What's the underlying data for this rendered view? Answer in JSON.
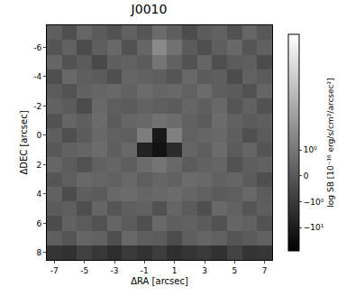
{
  "chart_data": {
    "type": "heatmap",
    "title": "J0010",
    "x_label": "ΔRA [arcsec]",
    "y_label": "ΔDEC [arcsec]",
    "x": [
      -7,
      -6,
      -5,
      -4,
      -3,
      -2,
      -1,
      0,
      1,
      2,
      3,
      4,
      5,
      6,
      7
    ],
    "y": [
      -7,
      -6,
      -5,
      -4,
      -3,
      -2,
      -1,
      0,
      1,
      2,
      3,
      4,
      5,
      6,
      7,
      8
    ],
    "xlim": [
      -7.5,
      7.5
    ],
    "ylim": [
      8.5,
      -7.5
    ],
    "xticks": [
      -7,
      -5,
      -3,
      -1,
      1,
      3,
      5,
      7
    ],
    "yticks": [
      -6,
      -4,
      -2,
      0,
      2,
      4,
      6,
      8
    ],
    "cells": [
      [
        0.2,
        -0.3,
        0.4,
        0.1,
        -0.2,
        0.3,
        -0.1,
        0.6,
        0.2,
        -0.4,
        0.1,
        0.3,
        -0.2,
        0.4,
        0.0
      ],
      [
        -0.1,
        0.3,
        -0.4,
        0.2,
        0.5,
        -0.2,
        0.4,
        4.0,
        0.8,
        0.1,
        -0.3,
        0.2,
        0.5,
        -0.1,
        0.3
      ],
      [
        0.4,
        -0.2,
        0.1,
        -0.5,
        0.2,
        0.3,
        0.1,
        0.9,
        0.3,
        -0.2,
        0.4,
        -0.3,
        0.1,
        0.2,
        -0.4
      ],
      [
        -0.3,
        0.5,
        0.2,
        0.1,
        -0.3,
        0.4,
        0.3,
        0.2,
        -0.1,
        0.5,
        0.1,
        0.2,
        -0.4,
        0.3,
        0.1
      ],
      [
        0.1,
        -0.2,
        0.3,
        0.4,
        0.5,
        0.3,
        0.6,
        0.4,
        0.5,
        0.3,
        0.6,
        0.2,
        0.1,
        -0.2,
        0.4
      ],
      [
        0.3,
        0.1,
        -0.4,
        0.5,
        0.2,
        0.1,
        0.3,
        0.2,
        0.1,
        0.4,
        0.2,
        0.5,
        -0.1,
        0.3,
        -0.2
      ],
      [
        -0.2,
        0.4,
        0.2,
        0.6,
        0.1,
        0.4,
        0.5,
        0.8,
        0.6,
        0.3,
        0.1,
        0.6,
        0.3,
        0.1,
        0.2
      ],
      [
        0.2,
        -0.3,
        0.1,
        0.5,
        0.3,
        0.2,
        1.5,
        -12.0,
        2.0,
        0.3,
        0.4,
        0.5,
        0.2,
        -0.3,
        0.1
      ],
      [
        0.0,
        0.3,
        0.4,
        0.6,
        0.2,
        0.5,
        -6.0,
        -20.0,
        -3.0,
        0.4,
        0.2,
        0.6,
        0.1,
        0.4,
        -0.1
      ],
      [
        0.4,
        0.1,
        -0.2,
        0.3,
        0.4,
        0.2,
        0.6,
        0.9,
        0.5,
        0.1,
        0.3,
        0.4,
        -0.2,
        0.2,
        0.3
      ],
      [
        -0.1,
        0.2,
        0.5,
        0.4,
        0.3,
        0.5,
        0.2,
        0.4,
        0.3,
        0.6,
        0.5,
        0.3,
        0.4,
        0.1,
        -0.3
      ],
      [
        0.3,
        -0.4,
        0.2,
        0.1,
        0.5,
        0.6,
        0.4,
        0.5,
        0.6,
        0.4,
        0.3,
        0.1,
        0.2,
        0.5,
        0.1
      ],
      [
        0.1,
        0.2,
        -0.3,
        0.4,
        -0.1,
        0.2,
        0.3,
        -0.2,
        0.4,
        0.1,
        -0.3,
        0.5,
        0.3,
        -0.1,
        0.2
      ],
      [
        -0.4,
        0.3,
        0.1,
        -0.2,
        0.4,
        0.1,
        -0.3,
        0.5,
        0.2,
        0.3,
        0.1,
        -0.2,
        0.4,
        0.3,
        -0.2
      ],
      [
        0.2,
        -0.1,
        0.4,
        0.3,
        -0.3,
        0.5,
        0.2,
        0.1,
        -0.4,
        0.2,
        0.4,
        0.3,
        -0.1,
        0.1,
        0.3
      ],
      [
        -1.5,
        -2.0,
        -0.8,
        -1.2,
        -2.5,
        -1.0,
        -1.8,
        -0.9,
        -2.2,
        -1.4,
        -1.1,
        -2.0,
        -0.7,
        -1.6,
        -1.3
      ]
    ],
    "colorbar": {
      "title": "log SB [10⁻¹⁶ erg/s/cm²/arcsec²]",
      "range": [
        -80,
        30000
      ],
      "ticks": [
        {
          "value": 1,
          "label": "10⁰"
        },
        0,
        {
          "value": -1,
          "label": "−10⁰"
        },
        {
          "value": -10,
          "label": "−10¹"
        }
      ]
    }
  }
}
